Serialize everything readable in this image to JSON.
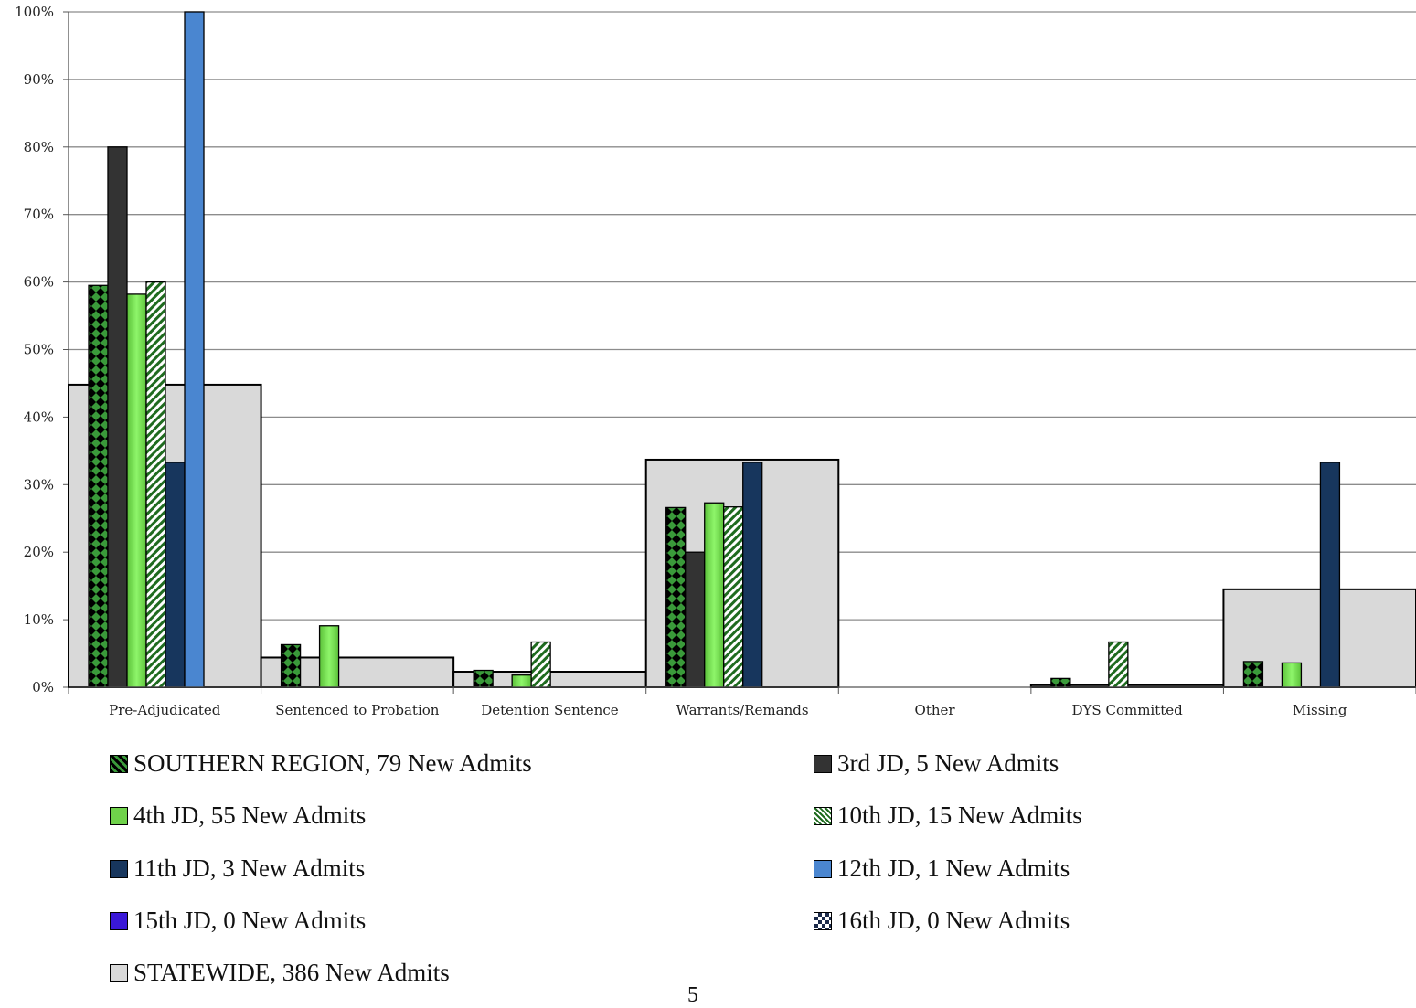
{
  "page_number": "5",
  "chart_data": {
    "type": "bar",
    "title": "",
    "xlabel": "",
    "ylabel": "",
    "ylim": [
      0,
      100
    ],
    "yticks": [
      "0%",
      "10%",
      "20%",
      "30%",
      "40%",
      "50%",
      "60%",
      "70%",
      "80%",
      "90%",
      "100%"
    ],
    "grid": true,
    "legend_position": "bottom",
    "categories": [
      "Pre-Adjudicated",
      "Sentenced to Probation",
      "Detention Sentence",
      "Warrants/Remands",
      "Other",
      "DYS Committed",
      "Missing"
    ],
    "series": [
      {
        "name": "SOUTHERN REGION, 79 New Admits",
        "color": "#2e7d32",
        "pattern": "green-diamonds",
        "values": [
          59.5,
          6.3,
          2.5,
          26.6,
          0,
          1.3,
          3.8
        ]
      },
      {
        "name": "3rd JD, 5 New Admits",
        "color": "#333333",
        "pattern": "solid",
        "values": [
          80,
          0,
          0,
          20,
          0,
          0,
          0
        ]
      },
      {
        "name": "4th JD, 55 New Admits",
        "color": "#6fd24a",
        "pattern": "gradient-green",
        "values": [
          58.2,
          9.1,
          1.8,
          27.3,
          0,
          0,
          3.6
        ]
      },
      {
        "name": "10th JD, 15 New Admits",
        "color": "#2e7d32",
        "pattern": "green-stripes",
        "values": [
          60,
          0,
          6.7,
          26.7,
          0,
          6.7,
          0
        ]
      },
      {
        "name": "11th JD, 3 New Admits",
        "color": "#17365d",
        "pattern": "solid",
        "values": [
          33.3,
          0,
          0,
          33.3,
          0,
          0,
          33.3
        ]
      },
      {
        "name": "12th JD, 1 New Admits",
        "color": "#4a86d0",
        "pattern": "solid",
        "values": [
          100,
          0,
          0,
          0,
          0,
          0,
          0
        ]
      },
      {
        "name": "15th JD, 0 New Admits",
        "color": "#3a18d8",
        "pattern": "solid",
        "values": [
          0,
          0,
          0,
          0,
          0,
          0,
          0
        ]
      },
      {
        "name": "16th JD, 0 New Admits",
        "color": "#1b2a4a",
        "pattern": "checker",
        "values": [
          0,
          0,
          0,
          0,
          0,
          0,
          0
        ]
      }
    ],
    "background_series": {
      "name": "STATEWIDE, 386 New Admits",
      "color": "#d9d9d9",
      "values": [
        44.8,
        4.4,
        2.3,
        33.7,
        0,
        0.3,
        14.5
      ]
    }
  }
}
